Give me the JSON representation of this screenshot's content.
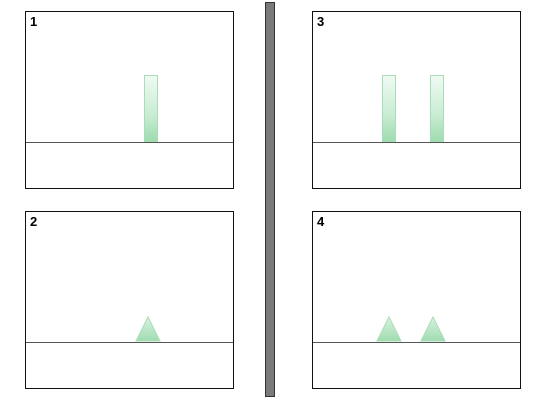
{
  "panels": [
    {
      "label": "1",
      "shape": "bar",
      "count": 1
    },
    {
      "label": "2",
      "shape": "triangle",
      "count": 1
    },
    {
      "label": "3",
      "shape": "bar",
      "count": 2
    },
    {
      "label": "4",
      "shape": "triangle",
      "count": 2
    }
  ],
  "colors": {
    "shape_fill_light": "#f0faf3",
    "shape_fill_dark": "#9fdcb0",
    "shape_stroke": "#a8ddb5",
    "divider": "#7a7a7a",
    "border": "#111111",
    "ground_line": "#555555"
  }
}
